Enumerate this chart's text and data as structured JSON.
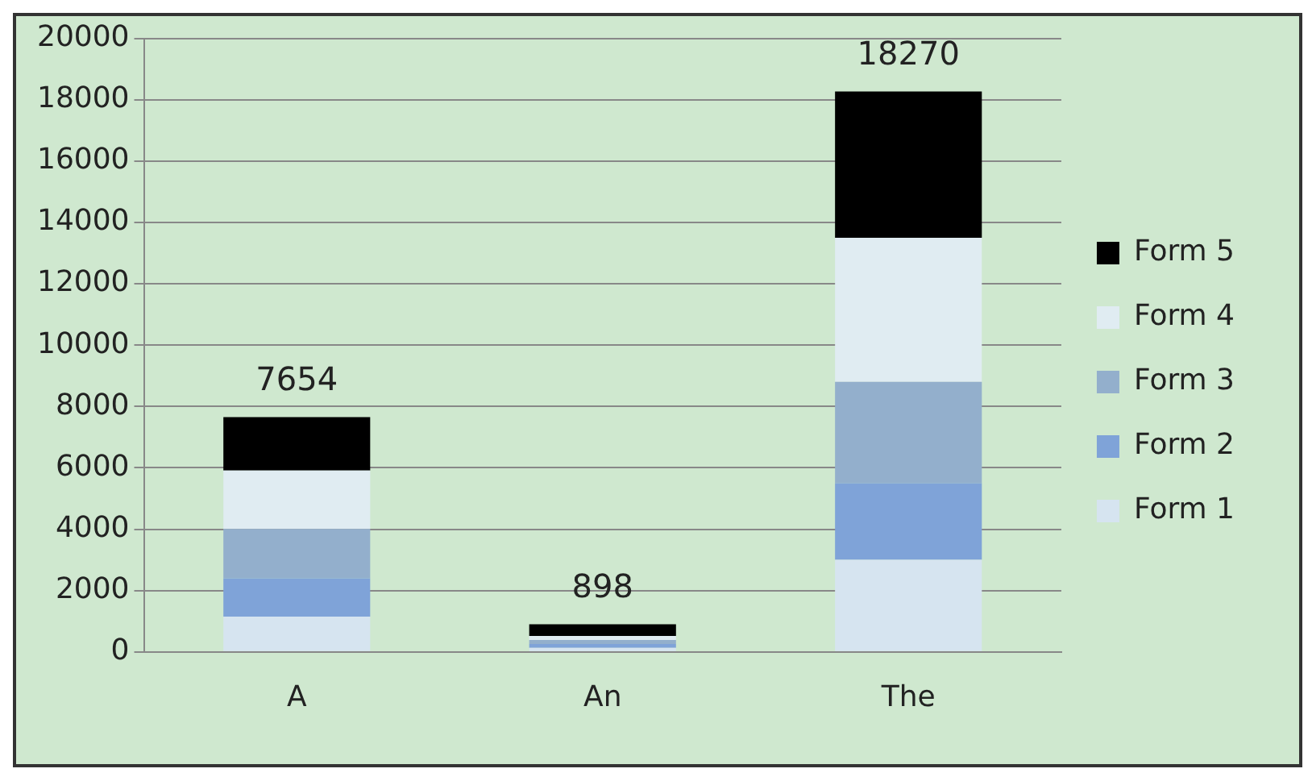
{
  "chart_data": {
    "type": "bar",
    "stacked": true,
    "categories": [
      "A",
      "An",
      "The"
    ],
    "series": [
      {
        "name": "Form 1",
        "color": "#d6e4f0",
        "values": [
          1150,
          130,
          3000
        ]
      },
      {
        "name": "Form 2",
        "color": "#7fa3d8",
        "values": [
          1250,
          130,
          2500
        ]
      },
      {
        "name": "Form 3",
        "color": "#93afcc",
        "values": [
          1610,
          130,
          3300
        ]
      },
      {
        "name": "Form 4",
        "color": "#e0ecf2",
        "values": [
          1900,
          130,
          4700
        ]
      },
      {
        "name": "Form 5",
        "color": "#000000",
        "values": [
          1744,
          378,
          4770
        ]
      }
    ],
    "totals": [
      "7654",
      "898",
      "18270"
    ],
    "ylim": [
      0,
      20000
    ],
    "yticks": [
      0,
      2000,
      4000,
      6000,
      8000,
      10000,
      12000,
      14000,
      16000,
      18000,
      20000
    ],
    "grid": "y",
    "legend": "right"
  }
}
